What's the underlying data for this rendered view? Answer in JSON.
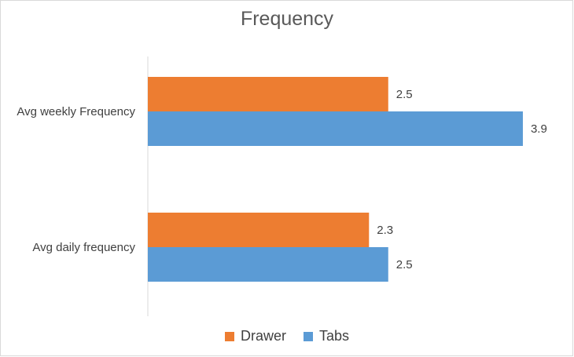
{
  "chart_data": {
    "type": "bar",
    "orientation": "horizontal",
    "title": "Frequency",
    "categories": [
      "Avg weekly Frequency",
      "Avg daily frequency"
    ],
    "series": [
      {
        "name": "Drawer",
        "values": [
          2.5,
          2.3
        ],
        "color": "#ED7D31"
      },
      {
        "name": "Tabs",
        "values": [
          3.9,
          2.5
        ],
        "color": "#5B9BD5"
      }
    ],
    "xlim": [
      0,
      4
    ],
    "grid": false,
    "legend": "bottom",
    "data_labels": true
  }
}
